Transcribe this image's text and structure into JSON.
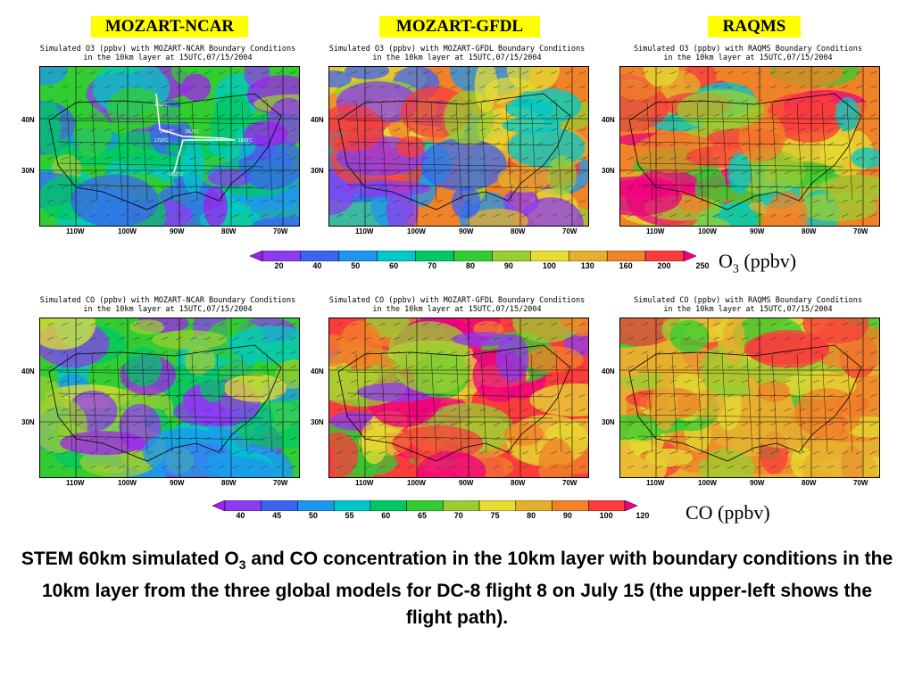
{
  "column_labels": [
    "MOZART-NCAR",
    "MOZART-GFDL",
    "RAQMS"
  ],
  "o3_panels": [
    {
      "title1": "Simulated O3 (ppbv) with MOZART-NCAR Boundary Conditions",
      "title2": "in the 10km layer at 15UTC,07/15/2004",
      "scheme": "ncar"
    },
    {
      "title1": "Simulated O3 (ppbv) with MOZART-GFDL Boundary Conditions",
      "title2": "in the 10km layer at 15UTC,07/15/2004",
      "scheme": "gfdl"
    },
    {
      "title1": "Simulated O3 (ppbv) with RAQMS Boundary Conditions",
      "title2": "in the 10km layer at 15UTC,07/15/2004",
      "scheme": "raqms"
    }
  ],
  "co_panels": [
    {
      "title1": "Simulated CO (ppbv) with MOZART-NCAR Boundary Conditions",
      "title2": "in the 10km layer at 15UTC,07/15/2004",
      "scheme": "co_ncar"
    },
    {
      "title1": "Simulated CO (ppbv) with MOZART-GFDL Boundary Conditions",
      "title2": "in the 10km layer at 15UTC,07/15/2004",
      "scheme": "co_gfdl"
    },
    {
      "title1": "Simulated CO (ppbv) with RAQMS Boundary Conditions",
      "title2": "in the 10km layer at 15UTC,07/15/2004",
      "scheme": "co_raqms"
    }
  ],
  "lat_labels": [
    "40N",
    "30N"
  ],
  "lon_labels": [
    "110W",
    "100W",
    "90W",
    "80W",
    "70W"
  ],
  "o3_colorbar": {
    "ticks": [
      "20",
      "40",
      "50",
      "60",
      "70",
      "80",
      "90",
      "100",
      "130",
      "160",
      "200",
      "250"
    ],
    "colors": [
      "#a020f0",
      "#8c3cf0",
      "#3c64f0",
      "#1e96f0",
      "#00c8c8",
      "#00c864",
      "#32cd32",
      "#9acd32",
      "#e6dc32",
      "#e6af2d",
      "#f08228",
      "#fa3c3c",
      "#f00082"
    ],
    "unit_main": "O",
    "unit_sub": "3",
    "unit_rest": " (ppbv)"
  },
  "co_colorbar": {
    "ticks": [
      "40",
      "45",
      "50",
      "55",
      "60",
      "65",
      "70",
      "75",
      "80",
      "90",
      "100",
      "120"
    ],
    "colors": [
      "#a020f0",
      "#8c3cf0",
      "#3c64f0",
      "#1e96f0",
      "#00c8c8",
      "#00c864",
      "#32cd32",
      "#9acd32",
      "#e6dc32",
      "#e6af2d",
      "#f08228",
      "#fa3c3c",
      "#f00082"
    ],
    "unit": "CO (ppbv)"
  },
  "flight_path_labels": [
    "13UTC",
    "14UTC",
    "15UTC",
    "16UTC",
    "17UTC",
    "18UTC"
  ],
  "caption": {
    "part1": "STEM 60km simulated O",
    "sub": "3",
    "part2": " and CO concentration in the 10km layer with boundary conditions in the 10km layer from the three global models for DC-8 flight 8 on July 15 (the upper-left shows the flight path)."
  }
}
